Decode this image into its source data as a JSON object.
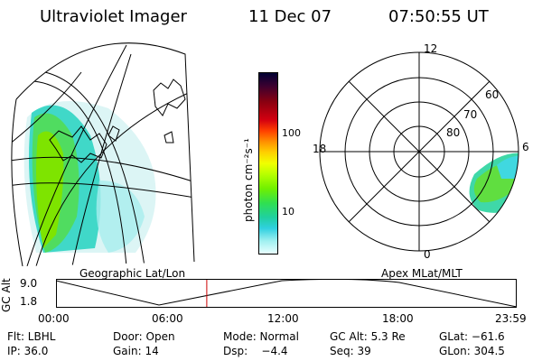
{
  "header": {
    "instrument": "Ultraviolet Imager",
    "date": "11 Dec 07",
    "time": "07:50:55 UT"
  },
  "geo_panel": {
    "label": "Geographic Lat/Lon"
  },
  "colorbar": {
    "label": "photon cm⁻²s⁻¹",
    "ticks": [
      "100",
      "10"
    ],
    "colors": [
      "#000033",
      "#3a0030",
      "#8a0010",
      "#d40010",
      "#ff4000",
      "#ff9000",
      "#ffd000",
      "#f0ff00",
      "#b8ff00",
      "#70f000",
      "#30e050",
      "#20d0a0",
      "#30d0e0",
      "#a0f0f0",
      "#e8ffff"
    ]
  },
  "polar_panel": {
    "label": "Apex MLat/MLT",
    "mlt_labels": {
      "top": "12",
      "left": "18",
      "right": "6",
      "bottom": "0"
    },
    "mlat_labels": [
      "60",
      "70",
      "80"
    ]
  },
  "timeline": {
    "y_axis_label": "GC Alt",
    "y_ticks": [
      "9.0",
      "1.8"
    ],
    "x_ticks": [
      "00:00",
      "06:00",
      "12:00",
      "18:00",
      "23:59"
    ],
    "current_time_marker": "07:50:55",
    "marker_color": "#cc0000"
  },
  "footer": {
    "row1": {
      "filter": "Flt: LBHL",
      "door": "Door: Open",
      "mode": "Mode: Normal",
      "gc_alt": "GC Alt: 5.3 Re",
      "glat": "GLat: −61.6"
    },
    "row2": {
      "ip": "IP: 36.0",
      "gain": "Gain: 14",
      "dsp": "Dsp:    −4.4",
      "seq": "Seq: 39",
      "glon": "GLon: 304.5"
    }
  }
}
